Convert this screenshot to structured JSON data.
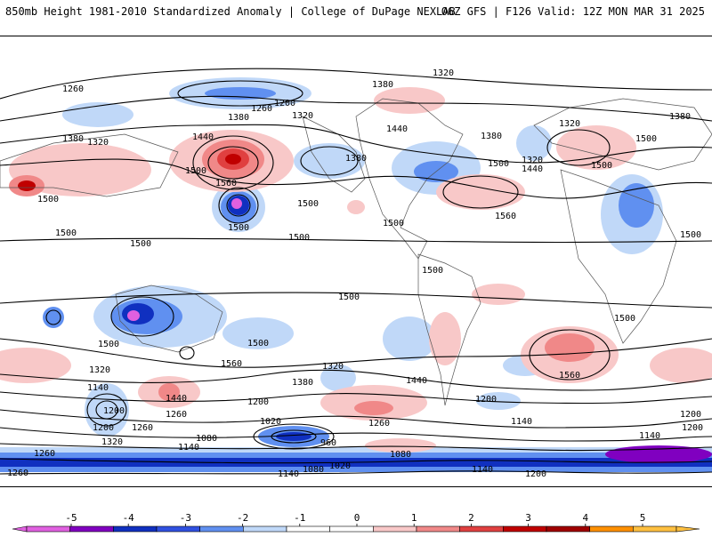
{
  "header": {
    "title": "850mb Height 1981-2010 Standardized Anomaly | College of DuPage NEXLAB",
    "run_info": "06Z GFS | F126 Valid: 12Z MON MAR 31 2025"
  },
  "map": {
    "contour_labels": [
      "1260",
      "1200",
      "1260",
      "1320",
      "1380",
      "1380",
      "1440",
      "1500",
      "1320",
      "1380",
      "1320",
      "1380",
      "1320",
      "1380",
      "1440",
      "1500",
      "1440",
      "1380",
      "1320",
      "1500",
      "1500",
      "1500",
      "1500",
      "1500",
      "1560",
      "1560",
      "1500",
      "1500",
      "1500",
      "1500",
      "1500",
      "1500",
      "1500",
      "1560",
      "1500",
      "1500",
      "1560",
      "1320",
      "1140",
      "1200",
      "1320",
      "1440",
      "1260",
      "1380",
      "1440",
      "1200",
      "1260",
      "1140",
      "1200",
      "1140",
      "1080",
      "960",
      "1020",
      "1080",
      "1140",
      "1080",
      "1020",
      "1200",
      "1140",
      "1200",
      "1140",
      "1200",
      "1260",
      "1320",
      "1260",
      "1200",
      "1260",
      "1500"
    ]
  },
  "colorbar": {
    "ticks": [
      "-5",
      "-4",
      "-3",
      "-2",
      "-1",
      "0",
      "1",
      "2",
      "3",
      "4",
      "5"
    ],
    "colors": [
      "#e060e0",
      "#8000c0",
      "#1030c0",
      "#3050e0",
      "#6090f0",
      "#c0d8f8",
      "#ffffff",
      "#ffffff",
      "#f8c8c8",
      "#f08888",
      "#e04040",
      "#c00000",
      "#a00000",
      "#ff9000",
      "#ffc040"
    ]
  }
}
